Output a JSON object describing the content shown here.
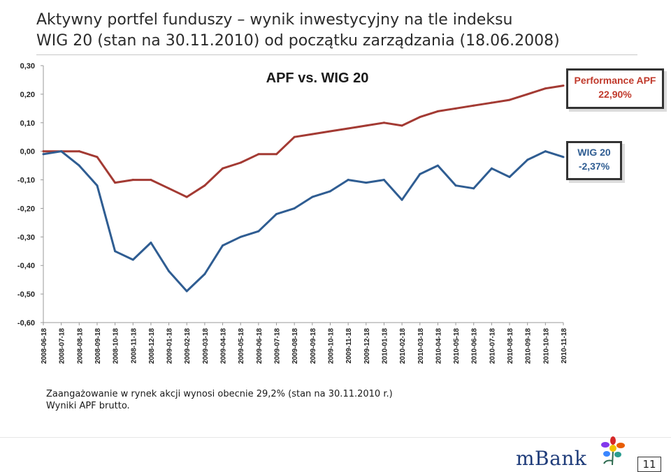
{
  "slide": {
    "title_line1": "Aktywny portfel funduszy – wynik inwestycyjny na tle indeksu",
    "title_line2": "WIG 20 (stan na 30.11.2010) od początku zarządzania (18.06.2008)",
    "note_line1": "Zaangażowanie w rynek akcji wynosi obecnie 29,2% (stan na 30.11.2010 r.)",
    "note_line2": "Wyniki APF brutto.",
    "page_number": "11",
    "logo_text": "mBank"
  },
  "badges": {
    "apf_label": "Performance APF",
    "apf_value": "22,90%",
    "wig_label": "WIG 20",
    "wig_value": "-2,37%"
  },
  "colors": {
    "apf": "#a33a33",
    "wig": "#2f5d92",
    "badge_border": "#333333"
  },
  "chart_data": {
    "type": "line",
    "title": "APF vs. WIG 20",
    "xlabel": "",
    "ylabel": "",
    "ylim": [
      -0.6,
      0.3
    ],
    "y_ticks": [
      "0,30",
      "0,20",
      "0,10",
      "0,00",
      "-0,10",
      "-0,20",
      "-0,30",
      "-0,40",
      "-0,50",
      "-0,60"
    ],
    "y_tick_values": [
      0.3,
      0.2,
      0.1,
      0.0,
      -0.1,
      -0.2,
      -0.3,
      -0.4,
      -0.5,
      -0.6
    ],
    "x_ticks": [
      "2008-06-18",
      "2008-07-18",
      "2008-08-18",
      "2008-09-18",
      "2008-10-18",
      "2008-11-18",
      "2008-12-18",
      "2009-01-18",
      "2009-02-18",
      "2009-03-18",
      "2009-04-18",
      "2009-05-18",
      "2009-06-18",
      "2009-07-18",
      "2009-08-18",
      "2009-09-18",
      "2009-10-18",
      "2009-11-18",
      "2009-12-18",
      "2010-01-18",
      "2010-02-18",
      "2010-03-18",
      "2010-04-18",
      "2010-05-18",
      "2010-06-18",
      "2010-07-18",
      "2010-08-18",
      "2010-09-18",
      "2010-10-18",
      "2010-11-18"
    ],
    "series": [
      {
        "name": "APF",
        "values": [
          0.0,
          0.0,
          0.0,
          -0.02,
          -0.11,
          -0.1,
          -0.1,
          -0.13,
          -0.16,
          -0.12,
          -0.06,
          -0.04,
          -0.01,
          -0.01,
          0.05,
          0.06,
          0.07,
          0.08,
          0.09,
          0.1,
          0.09,
          0.12,
          0.14,
          0.15,
          0.16,
          0.17,
          0.18,
          0.2,
          0.22,
          0.23
        ]
      },
      {
        "name": "WIG 20",
        "values": [
          -0.01,
          0.0,
          -0.05,
          -0.12,
          -0.35,
          -0.38,
          -0.32,
          -0.42,
          -0.49,
          -0.43,
          -0.33,
          -0.3,
          -0.28,
          -0.22,
          -0.2,
          -0.16,
          -0.14,
          -0.1,
          -0.11,
          -0.1,
          -0.17,
          -0.08,
          -0.05,
          -0.12,
          -0.13,
          -0.06,
          -0.09,
          -0.03,
          0.0,
          -0.02
        ]
      }
    ],
    "grid": false,
    "legend": "right (callout boxes)"
  }
}
